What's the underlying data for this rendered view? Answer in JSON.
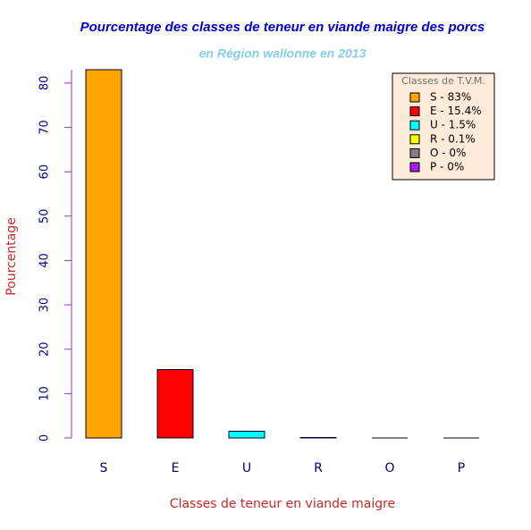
{
  "chart_data": {
    "type": "bar",
    "title": "Pourcentage des classes de teneur en viande maigre des porcs",
    "subtitle": "en Région wallonne en 2013",
    "x_label": "Classes de teneur en viande maigre",
    "y_label": "Pourcentage",
    "categories": [
      "S",
      "E",
      "U",
      "R",
      "O",
      "P"
    ],
    "values": [
      83,
      15.4,
      1.5,
      0.1,
      0,
      0
    ],
    "colors": [
      "#ffa500",
      "#ff0000",
      "#00ffff",
      "#ffff00",
      "#808080",
      "#a020f0"
    ],
    "ylim": [
      0,
      83
    ],
    "yticks": [
      0,
      10,
      20,
      30,
      40,
      50,
      60,
      70,
      80
    ],
    "legend": {
      "title": "Classes de T.V.M.",
      "labels": [
        "S - 83%",
        "E - 15.4%",
        "U - 1.5%",
        "R - 0.1%",
        "O - 0%",
        "P - 0%"
      ],
      "position": "top-right"
    }
  }
}
